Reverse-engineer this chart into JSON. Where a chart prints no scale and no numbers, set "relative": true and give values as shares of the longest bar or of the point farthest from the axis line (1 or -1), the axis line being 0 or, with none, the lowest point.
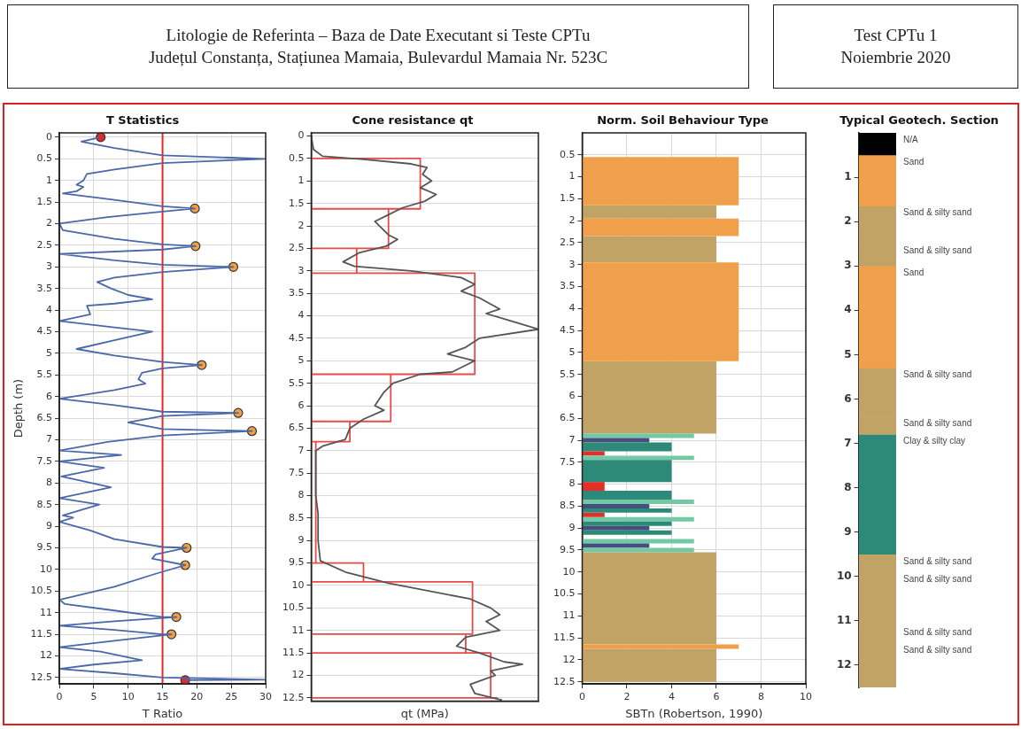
{
  "chart_data": [
    {
      "type": "other",
      "title": "Litologie de Referinta – Baza de Date Executant si Teste CPTu",
      "annotations": [
        "Județul Constanța, Stațiunea Mamaia, Bulevardul Mamaia Nr. 523C"
      ]
    },
    {
      "type": "other",
      "title": "Test CPTu 1",
      "annotations": [
        "Noiembrie 2020"
      ]
    },
    {
      "type": "line",
      "orientation": "horizontal",
      "title": "T Statistics",
      "xlabel": "T Ratio",
      "ylabel": "Depth (m)",
      "xlim": [
        0,
        30
      ],
      "xticks": [
        0,
        5,
        10,
        15,
        20,
        25,
        30
      ],
      "ylim": [
        12.65,
        -0.1
      ],
      "yticks": [
        0,
        0.5,
        1,
        1.5,
        2,
        2.5,
        3,
        3.5,
        4,
        4.5,
        5,
        5.5,
        6,
        6.5,
        7,
        7.5,
        8,
        8.5,
        9,
        9.5,
        10,
        10.5,
        11,
        11.5,
        12,
        12.5
      ],
      "grid": true,
      "ref_lines": [
        {
          "axis": "x",
          "value": 15,
          "color": "#e8262a"
        }
      ],
      "series": [
        {
          "color": "#4a68a8",
          "marker": "none",
          "values": [
            6,
            3.2,
            8,
            15,
            30,
            15,
            8,
            4,
            3.5,
            2.5,
            3.5,
            2.5,
            0.5,
            8,
            15,
            19.7,
            15,
            7,
            0,
            0.5,
            8,
            15,
            19.8,
            15,
            0,
            8,
            15,
            25.3,
            15,
            8,
            5.5,
            7.5,
            10,
            13.5,
            8,
            4,
            4.5,
            0,
            8,
            13.5,
            8,
            2.5,
            8,
            15,
            20.7,
            15,
            12,
            11.5,
            12.5,
            8,
            0,
            8,
            15,
            26,
            15,
            10,
            15,
            28,
            15,
            7,
            0,
            9,
            0,
            6.5,
            0.3,
            7.5,
            0,
            5.8,
            0.5,
            2,
            0,
            4.5,
            8,
            15,
            18.5,
            14,
            13.5,
            18.3,
            14,
            8,
            0,
            0.8,
            8,
            15,
            17,
            8,
            0,
            8,
            15,
            16.3,
            8,
            0,
            6,
            12,
            5,
            0,
            8,
            15,
            30,
            18.3
          ],
          "x": [
            0,
            0.1,
            0.25,
            0.42,
            0.5,
            0.6,
            0.75,
            0.85,
            1,
            1.1,
            1.15,
            1.25,
            1.3,
            1.45,
            1.6,
            1.65,
            1.72,
            1.85,
            2,
            2.15,
            2.35,
            2.48,
            2.52,
            2.6,
            2.7,
            2.85,
            2.95,
            3,
            3.12,
            3.25,
            3.35,
            3.5,
            3.65,
            3.75,
            3.85,
            3.9,
            4.1,
            4.25,
            4.4,
            4.5,
            4.7,
            4.9,
            5.05,
            5.2,
            5.27,
            5.35,
            5.45,
            5.6,
            5.7,
            5.85,
            6.05,
            6.2,
            6.35,
            6.38,
            6.45,
            6.6,
            6.75,
            6.8,
            6.9,
            7.05,
            7.25,
            7.35,
            7.5,
            7.65,
            7.85,
            8.1,
            8.35,
            8.5,
            8.75,
            8.8,
            8.9,
            9.1,
            9.3,
            9.48,
            9.5,
            9.65,
            9.75,
            9.9,
            10.1,
            10.4,
            10.7,
            10.8,
            10.95,
            11.1,
            11.1,
            11.2,
            11.3,
            11.4,
            11.5,
            11.5,
            11.65,
            11.8,
            11.9,
            12.1,
            12.2,
            12.3,
            12.4,
            12.5,
            12.55,
            12.56
          ]
        },
        {
          "type": "scatter",
          "color": "#f0a040",
          "marker": "circle",
          "values": [
            19.7,
            19.8,
            25.3,
            20.7,
            26,
            28,
            18.5,
            18.3,
            17,
            16.3
          ],
          "x": [
            1.65,
            2.52,
            3,
            5.27,
            6.38,
            6.8,
            9.5,
            9.9,
            11.1,
            11.5
          ]
        },
        {
          "type": "scatter",
          "color": "#e8262a",
          "marker": "circle",
          "values": [
            6,
            18.3
          ],
          "x": [
            0,
            12.56
          ]
        }
      ]
    },
    {
      "type": "line",
      "orientation": "horizontal",
      "title": "Cone resistance qt",
      "xlabel": "qt (MPa)",
      "relative": true,
      "ylim": [
        12.57,
        -0.07
      ],
      "yticks": [
        0,
        0.5,
        1,
        1.5,
        2,
        2.5,
        3,
        3.5,
        4,
        4.5,
        5,
        5.5,
        6,
        6.5,
        7,
        7.5,
        8,
        8.5,
        9,
        9.5,
        10,
        10.5,
        11,
        11.5,
        12,
        12.5
      ],
      "grid": "y",
      "series": [
        {
          "color": "#555555",
          "values": [
            0,
            0.01,
            0.05,
            0.23,
            0.44,
            0.51,
            0.49,
            0.53,
            0.48,
            0.55,
            0.5,
            0.4,
            0.34,
            0.28,
            0.34,
            0.38,
            0.33,
            0.21,
            0.14,
            0.19,
            0.44,
            0.66,
            0.72,
            0.66,
            0.74,
            0.83,
            0.77,
            0.87,
            1,
            0.74,
            0.68,
            0.6,
            0.72,
            0.62,
            0.48,
            0.36,
            0.32,
            0.28,
            0.32,
            0.23,
            0.17,
            0.15,
            0.05,
            0.02,
            0.02,
            0.03,
            0.03,
            0.04,
            0.15,
            0.34,
            0.7,
            0.79,
            0.83,
            0.77,
            0.83,
            0.68,
            0.64,
            0.74,
            0.85,
            0.93,
            0.79,
            0.81,
            0.7,
            0.72,
            0.84
          ],
          "x": [
            0,
            0.3,
            0.45,
            0.52,
            0.62,
            0.7,
            0.85,
            1,
            1.15,
            1.3,
            1.45,
            1.6,
            1.75,
            1.9,
            2.2,
            2.3,
            2.45,
            2.6,
            2.8,
            2.9,
            3,
            3.15,
            3.3,
            3.45,
            3.6,
            3.85,
            3.95,
            4.1,
            4.3,
            4.5,
            4.7,
            4.85,
            5,
            5.25,
            5.3,
            5.5,
            5.7,
            6,
            6.1,
            6.3,
            6.5,
            6.75,
            6.9,
            7,
            8,
            8.4,
            9,
            9.45,
            9.7,
            9.95,
            10.3,
            10.5,
            10.65,
            10.8,
            11,
            11.15,
            11.35,
            11.5,
            11.7,
            11.75,
            11.9,
            12,
            12.2,
            12.4,
            12.55
          ]
        },
        {
          "color": "#e84a4a",
          "values": [
            0,
            0.48,
            0.48,
            0,
            0.34,
            0.34,
            0,
            0.2,
            0.2,
            0,
            0.72,
            0.72,
            0,
            0.35,
            0.35,
            0,
            0.17,
            0.17,
            0,
            0.02,
            0.02,
            0,
            0.23,
            0.23,
            0,
            0.71,
            0.71,
            0,
            0.68,
            0.68,
            0,
            0.79,
            0.79,
            0,
            0.82
          ],
          "x": [
            0.5,
            0.5,
            1.62,
            1.62,
            1.62,
            2.5,
            2.5,
            2.5,
            3.05,
            3.05,
            3.05,
            5.3,
            5.3,
            5.3,
            6.35,
            6.35,
            6.35,
            6.8,
            6.8,
            6.8,
            9.5,
            9.5,
            9.5,
            9.92,
            9.92,
            9.92,
            11.08,
            11.08,
            11.08,
            11.5,
            11.5,
            11.5,
            12.5,
            12.5,
            12.5
          ]
        }
      ]
    },
    {
      "type": "histogram",
      "orientation": "horizontal",
      "title": "Norm. Soil Behaviour Type",
      "xlabel": "SBTn (Robertson, 1990)",
      "xlim": [
        0,
        10
      ],
      "xticks": [
        0,
        2,
        4,
        6,
        8,
        10
      ],
      "ylim": [
        12.55,
        0
      ],
      "yticks": [
        0.5,
        1,
        1.5,
        2,
        2.5,
        3,
        3.5,
        4,
        4.5,
        5,
        5.5,
        6,
        6.5,
        7,
        7.5,
        8,
        8.5,
        9,
        9.5,
        10,
        10.5,
        11,
        11.5,
        12,
        12.5
      ],
      "grid": true,
      "bins": [
        0.55,
        1.65,
        1.95,
        2.35,
        2.95,
        5.2,
        6.85,
        6.95,
        7.05,
        7.25,
        7.35,
        7.45,
        7.95,
        8.15,
        8.35,
        8.45,
        8.55,
        8.65,
        8.75,
        8.85,
        8.95,
        9.05,
        9.15,
        9.25,
        9.35,
        9.45,
        9.55,
        11.65,
        11.75,
        12.5
      ],
      "values": [
        7,
        6,
        7,
        6,
        7,
        6,
        5,
        3,
        4,
        1,
        5,
        4,
        1,
        4,
        5,
        3,
        4,
        1,
        5,
        4,
        3,
        4,
        null,
        5,
        3,
        5,
        6,
        7,
        6
      ],
      "colors": [
        "#f0a04b",
        "#c2a366",
        "#f0a04b",
        "#c2a366",
        "#f0a04b",
        "#c2a366",
        "#74c9a5",
        "#454f7d",
        "#2e8a78",
        "#e0302a",
        "#74c9a5",
        "#2e8a78",
        "#e0302a",
        "#2e8a78",
        "#74c9a5",
        "#454f7d",
        "#2e8a78",
        "#e0302a",
        "#74c9a5",
        "#2e8a78",
        "#454f7d",
        "#2e8a78",
        null,
        "#74c9a5",
        "#454f7d",
        "#74c9a5",
        "#c2a366",
        "#f0a04b",
        "#c2a366"
      ]
    },
    {
      "type": "bar",
      "stacked": true,
      "title": "Typical Geotech. Section",
      "categories": [
        null
      ],
      "ylim": [
        12.5,
        0
      ],
      "yticks": [
        1,
        2,
        3,
        4,
        5,
        6,
        7,
        8,
        9,
        10,
        11,
        12
      ],
      "tick_labels": "y",
      "series": [
        {
          "name": "N/A",
          "color": "#000000",
          "values": [
            0.5
          ]
        },
        {
          "name": "Sand",
          "color": "#f0a04b",
          "values": [
            1.15
          ]
        },
        {
          "name": "Sand & silty sand",
          "color": "#c2a366",
          "values": [
            0.85
          ]
        },
        {
          "name": "Sand & silty sand",
          "color": "#c2a366",
          "values": [
            0.5
          ]
        },
        {
          "name": "Sand",
          "color": "#f0a04b",
          "values": [
            2.3
          ]
        },
        {
          "name": "Sand & silty sand",
          "color": "#c2a366",
          "values": [
            1.1
          ]
        },
        {
          "name": "Sand & silty sand",
          "color": "#c2a366",
          "values": [
            0.4
          ]
        },
        {
          "name": "Clay & silty clay",
          "color": "#2e8a78",
          "values": [
            2.7
          ]
        },
        {
          "name": "Sand & silty sand",
          "color": "#c2a366",
          "values": [
            0.4
          ]
        },
        {
          "name": "Sand & silty sand",
          "color": "#c2a366",
          "values": [
            1.2
          ]
        },
        {
          "name": "Sand & silty sand",
          "color": "#c2a366",
          "values": [
            0.4
          ]
        },
        {
          "name": "Sand & silty sand",
          "color": "#c2a366",
          "values": [
            1.0
          ]
        }
      ]
    }
  ]
}
